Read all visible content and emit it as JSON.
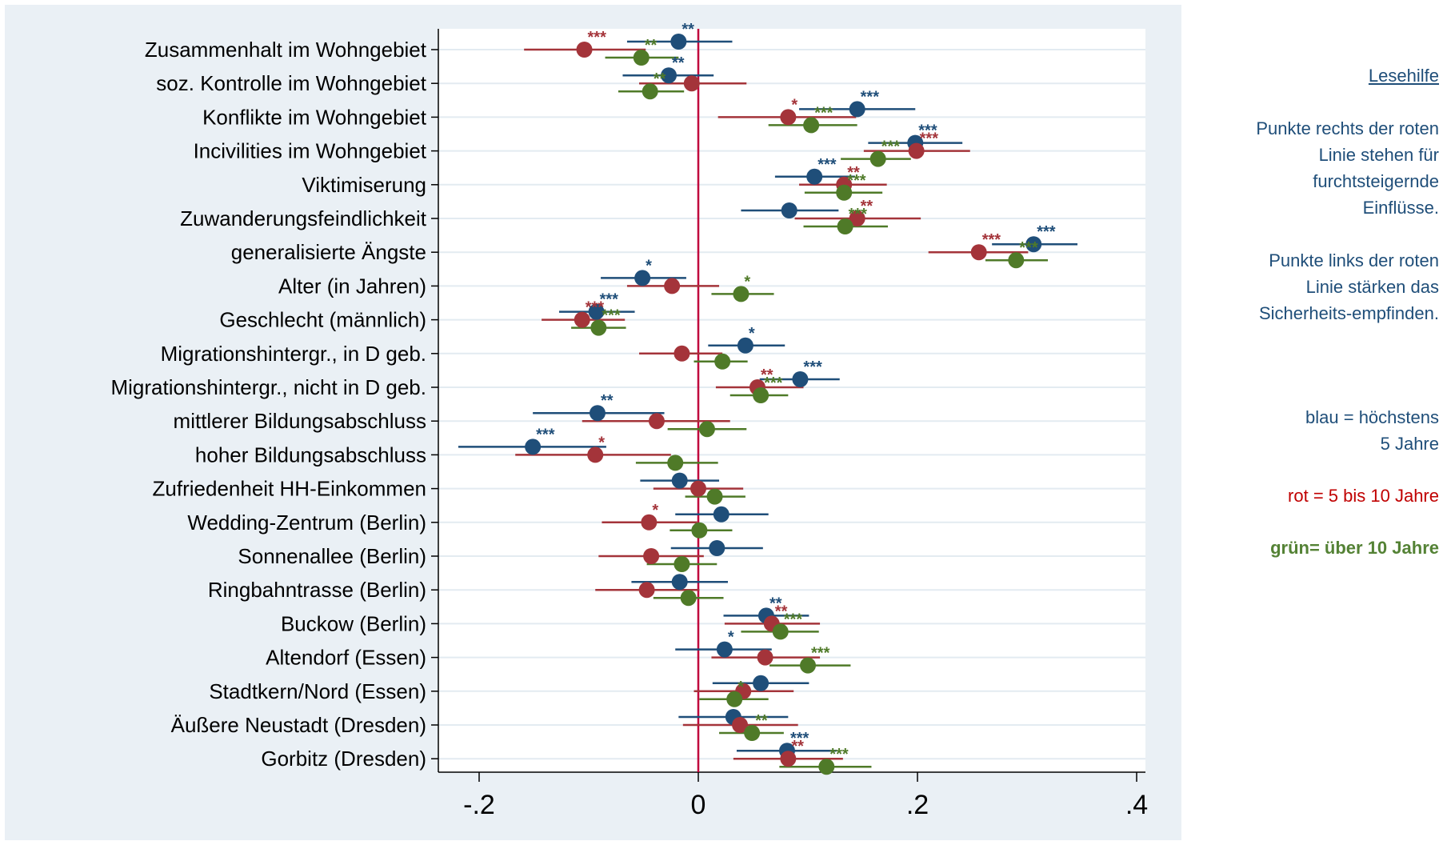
{
  "chart_data": {
    "type": "scatter",
    "subtype": "coefficient-plot",
    "xlim": [
      -0.23,
      0.42
    ],
    "xticks": [
      -0.2,
      0,
      0.2,
      0.4
    ],
    "xtick_labels": [
      "-.2",
      "0",
      ".2",
      ".4"
    ],
    "reference_line_x": 0,
    "grid": "horizontal",
    "categories": [
      "Zusammenhalt im Wohngebiet",
      "soz. Kontrolle im Wohngebiet",
      "Konflikte im Wohngebiet",
      "Incivilities im Wohngebiet",
      "Viktimiserung",
      "Zuwanderungsfeindlichkeit",
      "generalisierte Ängste",
      "Alter (in Jahren)",
      "Geschlecht (männlich)",
      "Migrationshintergr., in D geb.",
      "Migrationshintergr., nicht in D geb.",
      "mittlerer Bildungsabschluss",
      "hoher Bildungsabschluss",
      "Zufriedenheit HH-Einkommen",
      "Wedding-Zentrum (Berlin)",
      "Sonnenallee (Berlin)",
      "Ringbahntrasse (Berlin)",
      "Buckow (Berlin)",
      "Altendorf (Essen)",
      "Stadtkern/Nord (Essen)",
      "Äußere Neustadt (Dresden)",
      "Gorbitz (Dresden)"
    ],
    "series": [
      {
        "key": "blue",
        "color": "#1f4e79",
        "values": [
          -0.018,
          -0.027,
          0.145,
          0.198,
          0.106,
          0.083,
          0.306,
          -0.051,
          -0.093,
          0.043,
          0.093,
          -0.092,
          -0.151,
          -0.017,
          0.021,
          0.017,
          -0.017,
          0.062,
          0.024,
          0.057,
          0.032,
          0.081
        ],
        "ci_low": [
          -0.065,
          -0.069,
          0.092,
          0.155,
          0.07,
          0.039,
          0.268,
          -0.089,
          -0.127,
          0.009,
          0.056,
          -0.151,
          -0.219,
          -0.053,
          -0.021,
          -0.025,
          -0.061,
          0.023,
          -0.021,
          0.013,
          -0.018,
          0.035
        ],
        "ci_high": [
          0.031,
          0.014,
          0.198,
          0.241,
          0.143,
          0.128,
          0.346,
          -0.011,
          -0.058,
          0.079,
          0.129,
          -0.031,
          -0.084,
          0.019,
          0.064,
          0.059,
          0.027,
          0.101,
          0.067,
          0.101,
          0.082,
          0.126
        ],
        "stars": [
          "**",
          "**",
          "***",
          "***",
          "***",
          "",
          "***",
          "*",
          "***",
          "*",
          "***",
          "**",
          "***",
          "",
          "",
          "",
          "",
          "**",
          "*",
          "",
          "",
          "***"
        ]
      },
      {
        "key": "red",
        "color": "#a4343a",
        "values": [
          -0.104,
          -0.006,
          0.082,
          0.199,
          0.133,
          0.145,
          0.256,
          -0.024,
          -0.106,
          -0.015,
          0.054,
          -0.038,
          -0.094,
          0.0,
          -0.045,
          -0.043,
          -0.047,
          0.067,
          0.061,
          0.041,
          0.038,
          0.082
        ],
        "ci_low": [
          -0.159,
          -0.054,
          0.018,
          0.151,
          0.092,
          0.088,
          0.21,
          -0.065,
          -0.143,
          -0.054,
          0.016,
          -0.106,
          -0.167,
          -0.041,
          -0.088,
          -0.091,
          -0.094,
          0.024,
          0.012,
          -0.004,
          -0.014,
          0.032
        ],
        "ci_high": [
          -0.048,
          0.044,
          0.144,
          0.248,
          0.172,
          0.203,
          0.301,
          0.019,
          -0.067,
          0.022,
          0.096,
          0.029,
          -0.025,
          0.041,
          -0.001,
          0.005,
          0.001,
          0.111,
          0.111,
          0.087,
          0.091,
          0.132
        ],
        "stars": [
          "***",
          "",
          "*",
          "***",
          "**",
          "**",
          "***",
          "",
          "***",
          "",
          "**",
          "",
          "*",
          "",
          "*",
          "",
          "",
          "**",
          "",
          "",
          "",
          "**"
        ]
      },
      {
        "key": "green",
        "color": "#4f7a28",
        "values": [
          -0.052,
          -0.044,
          0.103,
          0.164,
          0.133,
          0.134,
          0.29,
          0.039,
          -0.091,
          0.022,
          0.057,
          0.008,
          -0.021,
          0.015,
          0.001,
          -0.015,
          -0.009,
          0.075,
          0.1,
          0.033,
          0.049,
          0.117
        ],
        "ci_low": [
          -0.085,
          -0.073,
          0.064,
          0.13,
          0.097,
          0.096,
          0.262,
          0.012,
          -0.116,
          -0.004,
          0.029,
          -0.028,
          -0.057,
          -0.012,
          -0.026,
          -0.047,
          -0.041,
          0.039,
          0.065,
          0.001,
          0.019,
          0.074
        ],
        "ci_high": [
          -0.018,
          -0.013,
          0.145,
          0.194,
          0.168,
          0.173,
          0.319,
          0.069,
          -0.066,
          0.045,
          0.082,
          0.044,
          0.018,
          0.043,
          0.031,
          0.017,
          0.023,
          0.11,
          0.139,
          0.064,
          0.078,
          0.158
        ],
        "stars": [
          "**",
          "**",
          "***",
          "***",
          "***",
          "***",
          "***",
          "*",
          "***",
          "",
          "***",
          "",
          "",
          "",
          "",
          "",
          "",
          "***",
          "***",
          "*",
          "**",
          "***"
        ]
      }
    ]
  },
  "legend": {
    "title": "Lesehilfe",
    "help_lines": [
      "Punkte rechts der roten",
      "Linie stehen für",
      "furchtsteigernde",
      "Einflüsse.",
      "",
      "Punkte links der roten",
      "Linie stärken das",
      "Sicherheits-empfinden."
    ],
    "blue_lines": [
      "blau = höchstens",
      "5 Jahre"
    ],
    "red_label": "rot = 5 bis 10 Jahre",
    "green_label": "grün= über 10 Jahre"
  }
}
